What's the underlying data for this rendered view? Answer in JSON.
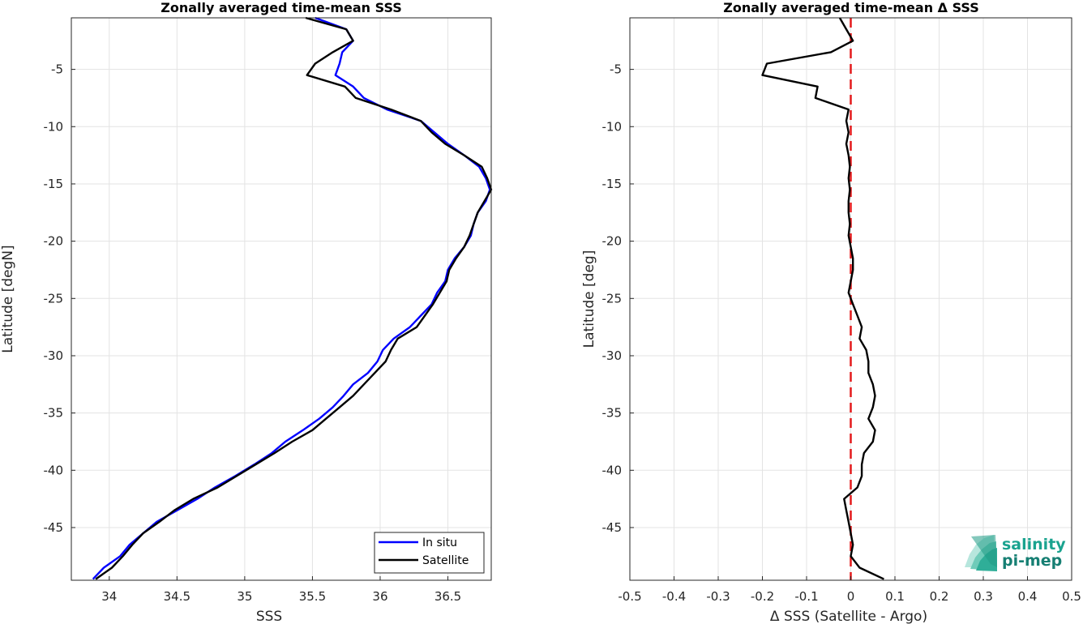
{
  "chart_data": [
    {
      "type": "line",
      "title": "Zonally averaged time-mean SSS",
      "xlabel": "SSS",
      "ylabel": "Latitude [degN]",
      "xlim": [
        33.72,
        36.82
      ],
      "ylim": [
        -49.6,
        -0.5
      ],
      "xticks": [
        34,
        34.5,
        35,
        35.5,
        36,
        36.5
      ],
      "yticks": [
        -5,
        -10,
        -15,
        -20,
        -25,
        -30,
        -35,
        -40,
        -45
      ],
      "grid": true,
      "legend": {
        "position": "bottom-right",
        "entries": [
          "In situ",
          "Satellite"
        ]
      },
      "series": [
        {
          "name": "In situ",
          "color": "#0000ff",
          "points": [
            [
              35.52,
              -0.5
            ],
            [
              35.75,
              -1.5
            ],
            [
              35.8,
              -2.5
            ],
            [
              35.72,
              -3.5
            ],
            [
              35.7,
              -4.5
            ],
            [
              35.67,
              -5.5
            ],
            [
              35.8,
              -6.5
            ],
            [
              35.88,
              -7.5
            ],
            [
              36.05,
              -8.5
            ],
            [
              36.3,
              -9.5
            ],
            [
              36.4,
              -10.5
            ],
            [
              36.5,
              -11.5
            ],
            [
              36.62,
              -12.5
            ],
            [
              36.73,
              -13.5
            ],
            [
              36.78,
              -14.5
            ],
            [
              36.81,
              -15.5
            ],
            [
              36.78,
              -16.5
            ],
            [
              36.72,
              -17.5
            ],
            [
              36.69,
              -18.5
            ],
            [
              36.67,
              -19.5
            ],
            [
              36.62,
              -20.5
            ],
            [
              36.55,
              -21.5
            ],
            [
              36.5,
              -22.5
            ],
            [
              36.48,
              -23.5
            ],
            [
              36.42,
              -24.5
            ],
            [
              36.38,
              -25.5
            ],
            [
              36.3,
              -26.5
            ],
            [
              36.22,
              -27.5
            ],
            [
              36.1,
              -28.5
            ],
            [
              36.02,
              -29.5
            ],
            [
              35.98,
              -30.5
            ],
            [
              35.91,
              -31.5
            ],
            [
              35.8,
              -32.5
            ],
            [
              35.73,
              -33.5
            ],
            [
              35.65,
              -34.5
            ],
            [
              35.55,
              -35.5
            ],
            [
              35.43,
              -36.5
            ],
            [
              35.3,
              -37.5
            ],
            [
              35.2,
              -38.5
            ],
            [
              35.07,
              -39.5
            ],
            [
              34.93,
              -40.5
            ],
            [
              34.78,
              -41.5
            ],
            [
              34.65,
              -42.5
            ],
            [
              34.5,
              -43.5
            ],
            [
              34.35,
              -44.5
            ],
            [
              34.25,
              -45.5
            ],
            [
              34.15,
              -46.5
            ],
            [
              34.08,
              -47.5
            ],
            [
              33.96,
              -48.5
            ],
            [
              33.88,
              -49.5
            ]
          ]
        },
        {
          "name": "Satellite",
          "color": "#000000",
          "points": [
            [
              35.45,
              -0.5
            ],
            [
              35.75,
              -1.5
            ],
            [
              35.8,
              -2.5
            ],
            [
              35.65,
              -3.5
            ],
            [
              35.52,
              -4.5
            ],
            [
              35.46,
              -5.5
            ],
            [
              35.74,
              -6.5
            ],
            [
              35.82,
              -7.5
            ],
            [
              36.08,
              -8.5
            ],
            [
              36.3,
              -9.5
            ],
            [
              36.38,
              -10.5
            ],
            [
              36.48,
              -11.5
            ],
            [
              36.62,
              -12.5
            ],
            [
              36.75,
              -13.5
            ],
            [
              36.79,
              -14.5
            ],
            [
              36.82,
              -15.5
            ],
            [
              36.77,
              -16.5
            ],
            [
              36.72,
              -17.5
            ],
            [
              36.69,
              -18.5
            ],
            [
              36.66,
              -19.5
            ],
            [
              36.62,
              -20.5
            ],
            [
              36.56,
              -21.5
            ],
            [
              36.51,
              -22.5
            ],
            [
              36.49,
              -23.5
            ],
            [
              36.44,
              -24.5
            ],
            [
              36.39,
              -25.5
            ],
            [
              36.33,
              -26.5
            ],
            [
              36.27,
              -27.5
            ],
            [
              36.13,
              -28.5
            ],
            [
              36.08,
              -29.5
            ],
            [
              36.04,
              -30.5
            ],
            [
              35.96,
              -31.5
            ],
            [
              35.88,
              -32.5
            ],
            [
              35.8,
              -33.5
            ],
            [
              35.7,
              -34.5
            ],
            [
              35.6,
              -35.5
            ],
            [
              35.5,
              -36.5
            ],
            [
              35.35,
              -37.5
            ],
            [
              35.22,
              -38.5
            ],
            [
              35.08,
              -39.5
            ],
            [
              34.94,
              -40.5
            ],
            [
              34.8,
              -41.5
            ],
            [
              34.62,
              -42.5
            ],
            [
              34.48,
              -43.5
            ],
            [
              34.37,
              -44.5
            ],
            [
              34.25,
              -45.5
            ],
            [
              34.17,
              -46.5
            ],
            [
              34.1,
              -47.5
            ],
            [
              34.02,
              -48.5
            ],
            [
              33.9,
              -49.5
            ]
          ]
        }
      ]
    },
    {
      "type": "line",
      "title": "Zonally averaged time-mean Δ SSS",
      "xlabel": "Δ SSS (Satellite - Argo)",
      "ylabel": "Latitude [deg]",
      "xlim": [
        -0.5,
        0.5
      ],
      "ylim": [
        -49.6,
        -0.5
      ],
      "xticks": [
        -0.5,
        -0.4,
        -0.3,
        -0.2,
        -0.1,
        0,
        0.1,
        0.2,
        0.3,
        0.4,
        0.5
      ],
      "yticks": [
        -5,
        -10,
        -15,
        -20,
        -25,
        -30,
        -35,
        -40,
        -45
      ],
      "grid": true,
      "reference_line": {
        "x": 0,
        "color": "#e41a1c",
        "style": "dashed"
      },
      "series": [
        {
          "color": "#000000",
          "points": [
            [
              -0.025,
              -0.5
            ],
            [
              -0.01,
              -1.5
            ],
            [
              0.005,
              -2.5
            ],
            [
              -0.045,
              -3.5
            ],
            [
              -0.19,
              -4.5
            ],
            [
              -0.2,
              -5.5
            ],
            [
              -0.075,
              -6.5
            ],
            [
              -0.08,
              -7.5
            ],
            [
              -0.005,
              -8.5
            ],
            [
              -0.01,
              -9.5
            ],
            [
              -0.005,
              -10.5
            ],
            [
              -0.01,
              -11.5
            ],
            [
              -0.005,
              -12.5
            ],
            [
              -0.002,
              -13.5
            ],
            [
              -0.005,
              -14.5
            ],
            [
              -0.002,
              -15.5
            ],
            [
              -0.005,
              -16.5
            ],
            [
              -0.005,
              -17.5
            ],
            [
              -0.002,
              -18.5
            ],
            [
              -0.005,
              -19.5
            ],
            [
              0.0,
              -20.5
            ],
            [
              0.005,
              -21.5
            ],
            [
              0.005,
              -22.5
            ],
            [
              0.0,
              -23.5
            ],
            [
              -0.005,
              -24.5
            ],
            [
              0.005,
              -25.5
            ],
            [
              0.015,
              -26.5
            ],
            [
              0.025,
              -27.5
            ],
            [
              0.02,
              -28.5
            ],
            [
              0.035,
              -29.5
            ],
            [
              0.04,
              -30.5
            ],
            [
              0.04,
              -31.5
            ],
            [
              0.05,
              -32.5
            ],
            [
              0.055,
              -33.5
            ],
            [
              0.05,
              -34.5
            ],
            [
              0.04,
              -35.5
            ],
            [
              0.055,
              -36.5
            ],
            [
              0.05,
              -37.5
            ],
            [
              0.03,
              -38.5
            ],
            [
              0.025,
              -39.5
            ],
            [
              0.025,
              -40.5
            ],
            [
              0.015,
              -41.5
            ],
            [
              -0.015,
              -42.5
            ],
            [
              -0.01,
              -43.5
            ],
            [
              -0.005,
              -44.5
            ],
            [
              0.0,
              -45.5
            ],
            [
              0.005,
              -46.5
            ],
            [
              0.0,
              -47.5
            ],
            [
              0.02,
              -48.5
            ],
            [
              0.075,
              -49.5
            ]
          ]
        }
      ]
    }
  ],
  "logo": {
    "line1": "salinity",
    "line2": "pi-mep",
    "color1": "#1aa38f",
    "color2": "#167f73"
  }
}
